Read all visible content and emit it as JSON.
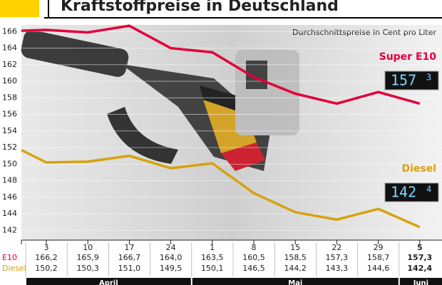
{
  "chart_data": {
    "type": "line",
    "title": "Kraftstoffpreise in Deutschland",
    "subtitle": "Durchschnittspreise in Cent pro Liter",
    "categories": [
      null,
      "3",
      "10",
      "17",
      "24",
      "1",
      "8",
      "15",
      "22",
      "29",
      "5"
    ],
    "months": [
      "April",
      "Mai",
      "Juni"
    ],
    "row_labels": [
      "E10",
      "Diesel"
    ],
    "series": [
      {
        "name": "Super E10",
        "color": "#e2003b",
        "values": [
          166.1,
          166.2,
          165.9,
          166.7,
          164.0,
          163.5,
          160.5,
          158.5,
          157.3,
          158.7,
          157.3
        ],
        "value_labels": [
          null,
          "166,2",
          "165,9",
          "166,7",
          "164,0",
          "163,5",
          "160,5",
          "158,5",
          "157,3",
          "158,7",
          "157,3"
        ],
        "display_main": "157",
        "display_sub": "3"
      },
      {
        "name": "Diesel",
        "color": "#d6a20f",
        "values": [
          151.7,
          150.2,
          150.3,
          151.0,
          149.5,
          150.1,
          146.5,
          144.2,
          143.3,
          144.6,
          142.4
        ],
        "value_labels": [
          null,
          "150,2",
          "150,3",
          "151,0",
          "149,5",
          "150,1",
          "146,5",
          "144,2",
          "143,3",
          "144,6",
          "142,4"
        ],
        "display_main": "142",
        "display_sub": "4"
      }
    ],
    "ylim": [
      141,
      166.8
    ],
    "yticks": [
      142,
      144,
      146,
      148,
      150,
      152,
      154,
      156,
      158,
      160,
      162,
      164,
      166
    ],
    "grid": true
  }
}
